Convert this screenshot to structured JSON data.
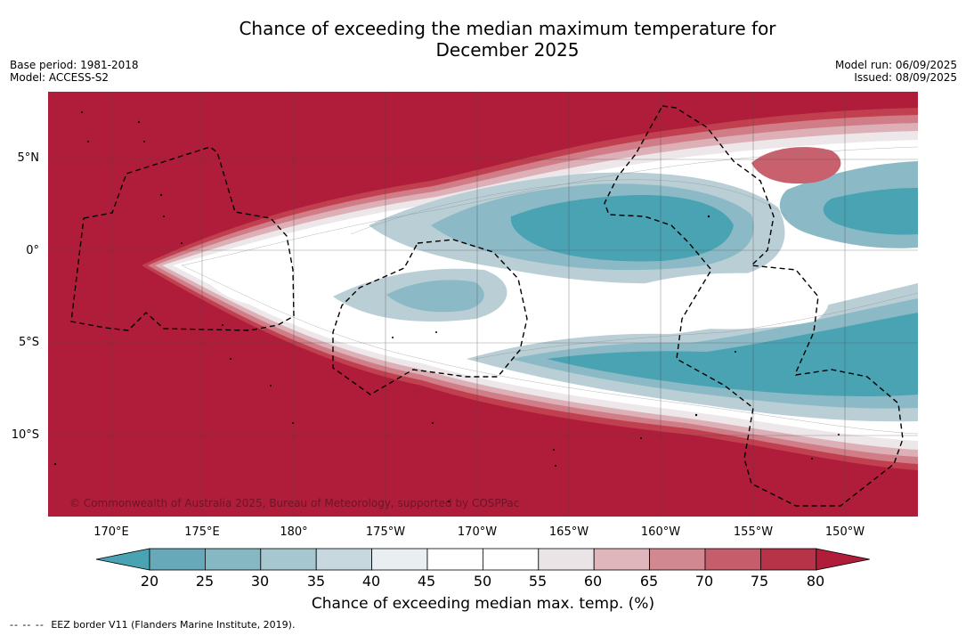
{
  "title": {
    "line1": "Chance of exceeding the median maximum temperature for",
    "line2": "December 2025"
  },
  "meta": {
    "base_period": "Base period: 1981-2018",
    "model": "Model: ACCESS-S2",
    "model_run": "Model run: 06/09/2025",
    "issued": "Issued: 08/09/2025"
  },
  "map": {
    "lat_labels": [
      "5°N",
      "0°",
      "5°S",
      "10°S"
    ],
    "lon_labels": [
      "170°E",
      "175°E",
      "180°",
      "175°W",
      "170°W",
      "165°W",
      "160°W",
      "155°W",
      "150°W"
    ],
    "copyright": "© Commonwealth of Australia 2025, Bureau of Meteorology, supported by COSPPac"
  },
  "colorbar": {
    "ticks": [
      "20",
      "25",
      "30",
      "35",
      "40",
      "45",
      "50",
      "55",
      "60",
      "65",
      "70",
      "75",
      "80"
    ],
    "colors": [
      "#4aa3b3",
      "#68a9b9",
      "#86b8c4",
      "#a6c7cf",
      "#c7d8de",
      "#e9eef1",
      "#ffffff",
      "#ffffff",
      "#ebe4e6",
      "#deb6bc",
      "#d28890",
      "#c55d6b",
      "#b73448",
      "#b01d3a"
    ],
    "label": "Chance of exceeding median max. temp. (%)"
  },
  "footer": {
    "legend_dash": "-- -- --",
    "legend_text": "EEZ border V11 (Flanders Marine Institute, 2019)."
  }
}
